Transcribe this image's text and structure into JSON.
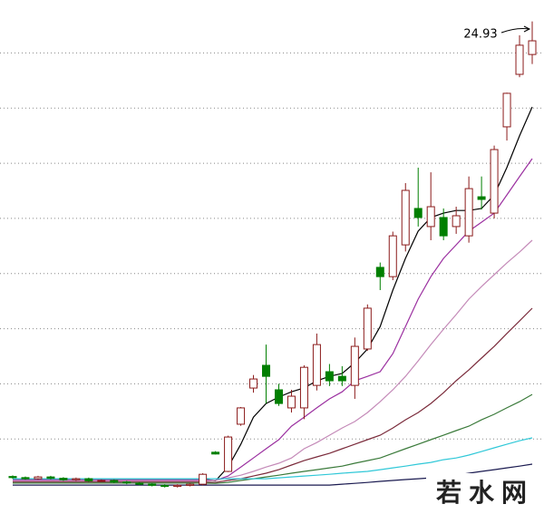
{
  "chart_data": {
    "type": "candlestick",
    "ylim": [
      2.6,
      25.9
    ],
    "yticks": [
      6,
      8.5,
      11,
      13.5,
      16,
      18.5,
      21,
      23.5
    ],
    "grid": true,
    "up_color": "#8b1a1a",
    "down_color": "#007f00",
    "open": [
      4.3,
      4.25,
      4.2,
      4.28,
      4.22,
      4.15,
      4.2,
      4.1,
      4.12,
      4.05,
      4.0,
      3.95,
      3.9,
      3.85,
      3.9,
      3.95,
      5.4,
      4.53,
      6.67,
      8.31,
      9.34,
      8.23,
      7.41,
      7.41,
      8.43,
      9.05,
      8.84,
      8.43,
      10.08,
      13.78,
      13.36,
      14.8,
      16.45,
      15.63,
      16.04,
      15.63,
      15.21,
      16.98,
      16.24,
      20.15,
      22.53,
      23.43
    ],
    "high": [
      4.35,
      4.3,
      4.33,
      4.33,
      4.27,
      4.25,
      4.25,
      4.17,
      4.17,
      4.1,
      4.05,
      4.0,
      3.95,
      3.95,
      4.0,
      4.45,
      5.45,
      6.15,
      7.45,
      8.9,
      10.28,
      8.5,
      8.23,
      9.34,
      10.78,
      9.4,
      9.3,
      10.6,
      12.1,
      14.0,
      15.4,
      17.6,
      18.3,
      18.09,
      16.45,
      16.53,
      17.9,
      17.9,
      19.3,
      21.7,
      24.3,
      24.93
    ],
    "low": [
      4.2,
      4.15,
      4.15,
      4.17,
      4.1,
      4.1,
      4.05,
      4.05,
      4.0,
      3.95,
      3.9,
      3.85,
      3.8,
      3.8,
      3.85,
      3.9,
      5.3,
      4.5,
      6.6,
      8.1,
      7.61,
      7.5,
      7.2,
      6.9,
      8.2,
      8.4,
      8.4,
      7.82,
      10.0,
      12.75,
      13.2,
      14.5,
      15.63,
      15.01,
      15.01,
      15.3,
      14.9,
      16.4,
      16.0,
      19.53,
      22.4,
      23.0
    ],
    "close": [
      4.25,
      4.2,
      4.28,
      4.22,
      4.15,
      4.2,
      4.1,
      4.12,
      4.05,
      4.0,
      3.95,
      3.9,
      3.85,
      3.9,
      3.95,
      4.4,
      5.32,
      6.09,
      7.41,
      8.72,
      8.84,
      7.61,
      7.94,
      9.25,
      10.28,
      8.64,
      8.64,
      10.2,
      11.93,
      13.36,
      15.21,
      17.27,
      16.04,
      16.53,
      15.21,
      16.12,
      17.35,
      16.86,
      19.12,
      21.67,
      23.85,
      24.05
    ],
    "series": [
      {
        "color": "#000000",
        "values": [
          4.2,
          4.2,
          4.2,
          4.2,
          4.2,
          4.2,
          4.2,
          4.2,
          4.2,
          4.2,
          4.2,
          4.2,
          4.2,
          4.2,
          4.2,
          4.2,
          4.1,
          4.73,
          5.76,
          6.99,
          7.61,
          7.9,
          8.14,
          8.31,
          8.64,
          8.84,
          8.97,
          9.46,
          10.08,
          11.1,
          12.75,
          14.19,
          15.42,
          16.04,
          16.24,
          16.36,
          16.36,
          16.45,
          17.06,
          18.3,
          19.74,
          21.05
        ]
      },
      {
        "color": "#9b30a0",
        "values": [
          4.15,
          4.15,
          4.15,
          4.15,
          4.15,
          4.15,
          4.15,
          4.15,
          4.15,
          4.15,
          4.15,
          4.15,
          4.15,
          4.15,
          4.15,
          4.15,
          4.12,
          4.32,
          4.73,
          5.14,
          5.56,
          5.97,
          6.58,
          6.99,
          7.41,
          7.82,
          8.14,
          8.64,
          8.84,
          9.05,
          9.87,
          11.1,
          12.34,
          13.36,
          14.19,
          14.8,
          15.42,
          15.83,
          16.24,
          17.06,
          17.89,
          18.71
        ]
      },
      {
        "color": "#c48ab8",
        "values": [
          4.1,
          4.1,
          4.1,
          4.1,
          4.1,
          4.1,
          4.1,
          4.1,
          4.1,
          4.1,
          4.1,
          4.1,
          4.1,
          4.1,
          4.1,
          4.1,
          4.12,
          4.24,
          4.36,
          4.53,
          4.73,
          4.9,
          5.14,
          5.56,
          5.84,
          6.17,
          6.5,
          6.79,
          7.2,
          7.69,
          8.23,
          8.84,
          9.54,
          10.28,
          10.98,
          11.64,
          12.34,
          12.91,
          13.45,
          13.98,
          14.47,
          15.01
        ]
      },
      {
        "color": "#7a2a3a",
        "values": [
          4.05,
          4.05,
          4.05,
          4.05,
          4.05,
          4.05,
          4.05,
          4.05,
          4.05,
          4.05,
          4.05,
          4.05,
          4.05,
          4.05,
          4.05,
          4.05,
          4.03,
          4.12,
          4.2,
          4.32,
          4.45,
          4.61,
          4.82,
          5.02,
          5.19,
          5.35,
          5.56,
          5.76,
          5.97,
          6.17,
          6.5,
          6.87,
          7.2,
          7.61,
          8.1,
          8.64,
          9.13,
          9.67,
          10.2,
          10.78,
          11.35,
          11.93
        ]
      },
      {
        "color": "#3a7a3a",
        "values": [
          4.0,
          4.0,
          4.0,
          4.0,
          4.0,
          4.0,
          4.0,
          4.0,
          4.0,
          4.0,
          4.0,
          4.0,
          4.0,
          4.0,
          4.0,
          4.0,
          3.99,
          4.03,
          4.12,
          4.2,
          4.28,
          4.36,
          4.45,
          4.53,
          4.61,
          4.69,
          4.77,
          4.9,
          5.02,
          5.14,
          5.35,
          5.56,
          5.76,
          5.97,
          6.17,
          6.38,
          6.58,
          6.87,
          7.12,
          7.41,
          7.69,
          8.02
        ]
      },
      {
        "color": "#30c8d8",
        "values": [
          4.2,
          4.2,
          4.2,
          4.2,
          4.2,
          4.2,
          4.2,
          4.2,
          4.2,
          4.2,
          4.2,
          4.2,
          4.2,
          4.2,
          4.2,
          4.2,
          4.2,
          4.2,
          4.2,
          4.2,
          4.2,
          4.24,
          4.28,
          4.32,
          4.36,
          4.4,
          4.45,
          4.49,
          4.53,
          4.61,
          4.69,
          4.77,
          4.86,
          4.94,
          5.06,
          5.14,
          5.27,
          5.43,
          5.6,
          5.76,
          5.92,
          6.05
        ]
      },
      {
        "color": "#1a1a50",
        "values": [
          3.91,
          3.91,
          3.91,
          3.91,
          3.91,
          3.91,
          3.91,
          3.91,
          3.91,
          3.91,
          3.91,
          3.91,
          3.91,
          3.91,
          3.91,
          3.91,
          3.91,
          3.91,
          3.91,
          3.91,
          3.91,
          3.91,
          3.91,
          3.91,
          3.91,
          3.91,
          3.95,
          3.99,
          4.03,
          4.08,
          4.12,
          4.16,
          4.2,
          4.24,
          4.28,
          4.36,
          4.45,
          4.53,
          4.61,
          4.69,
          4.77,
          4.86
        ]
      }
    ],
    "watermark": "若水网"
  }
}
